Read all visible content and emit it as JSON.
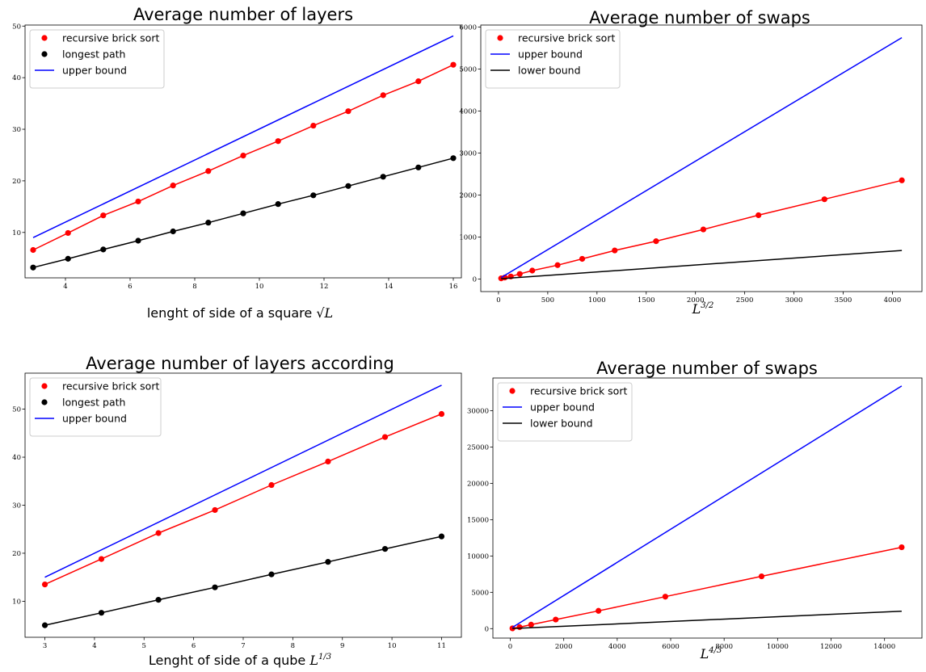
{
  "chart_data": [
    {
      "type": "line",
      "title": "Average number of layers",
      "xlabel": "lenght of side of a square √L",
      "xlim": [
        2.75,
        16.25
      ],
      "ylim": [
        1.2,
        50.2
      ],
      "xticks": [
        4,
        6,
        8,
        10,
        12,
        14,
        16
      ],
      "yticks": [
        10,
        20,
        30,
        40,
        50
      ],
      "legend": "top-left",
      "series": [
        {
          "name": "recursive brick sort",
          "style": "line+markers",
          "color": "#ff0000",
          "x": [
            3,
            4.08,
            5.17,
            6.25,
            7.33,
            8.42,
            9.5,
            10.58,
            11.67,
            12.75,
            13.83,
            14.92,
            16
          ],
          "y": [
            6.6,
            9.9,
            13.3,
            16.0,
            19.1,
            21.9,
            24.9,
            27.7,
            30.7,
            33.5,
            36.6,
            39.3,
            42.5
          ]
        },
        {
          "name": "longest path",
          "style": "line+markers",
          "color": "#000000",
          "x": [
            3,
            4.08,
            5.17,
            6.25,
            7.33,
            8.42,
            9.5,
            10.58,
            11.67,
            12.75,
            13.83,
            14.92,
            16
          ],
          "y": [
            3.2,
            4.9,
            6.7,
            8.4,
            10.2,
            11.9,
            13.7,
            15.5,
            17.2,
            19.0,
            20.8,
            22.6,
            24.4
          ]
        },
        {
          "name": "upper bound",
          "style": "line",
          "color": "#0000ff",
          "x": [
            3,
            16
          ],
          "y": [
            9.0,
            48.1
          ]
        }
      ]
    },
    {
      "type": "line",
      "title": "Average number of swaps",
      "xlabel": "L^{3/2}",
      "xlim": [
        -180,
        4300
      ],
      "ylim": [
        -300,
        6050
      ],
      "xticks": [
        0,
        500,
        1000,
        1500,
        2000,
        2500,
        3000,
        3500,
        4000
      ],
      "yticks": [
        0,
        1000,
        2000,
        3000,
        4000,
        5000,
        6000
      ],
      "legend": "top-left",
      "series": [
        {
          "name": "recursive brick sort",
          "style": "line+markers",
          "color": "#ff0000",
          "x": [
            27,
            64,
            125,
            216,
            343,
            600,
            850,
            1180,
            1600,
            2080,
            2640,
            3310,
            4096
          ],
          "y": [
            15,
            35,
            60,
            120,
            200,
            330,
            480,
            680,
            900,
            1180,
            1520,
            1900,
            2350
          ]
        },
        {
          "name": "upper bound",
          "style": "line",
          "color": "#0000ff",
          "x": [
            27,
            4096
          ],
          "y": [
            35,
            5750
          ]
        },
        {
          "name": "lower bound",
          "style": "line",
          "color": "#000000",
          "x": [
            27,
            4096
          ],
          "y": [
            5,
            680
          ]
        }
      ]
    },
    {
      "type": "line",
      "title": "Average number of layers according",
      "xlabel": "Lenght of side of a qube L^{1/3}",
      "xlim": [
        2.6,
        11.4
      ],
      "ylim": [
        2.5,
        57.5
      ],
      "xticks": [
        3,
        4,
        5,
        6,
        7,
        8,
        9,
        10,
        11
      ],
      "yticks": [
        10,
        20,
        30,
        40,
        50
      ],
      "legend": "top-left",
      "series": [
        {
          "name": "recursive brick sort",
          "style": "line+markers",
          "color": "#ff0000",
          "x": [
            3,
            4.14,
            5.29,
            6.43,
            7.57,
            8.71,
            9.86,
            11
          ],
          "y": [
            13.5,
            18.8,
            24.2,
            29.0,
            34.2,
            39.1,
            44.2,
            49.0
          ]
        },
        {
          "name": "longest path",
          "style": "line+markers",
          "color": "#000000",
          "x": [
            3,
            4.14,
            5.29,
            6.43,
            7.57,
            8.71,
            9.86,
            11
          ],
          "y": [
            5.0,
            7.6,
            10.3,
            12.9,
            15.6,
            18.2,
            20.9,
            23.5
          ]
        },
        {
          "name": "upper bound",
          "style": "line",
          "color": "#0000ff",
          "x": [
            3,
            11
          ],
          "y": [
            15.0,
            55.0
          ]
        }
      ]
    },
    {
      "type": "line",
      "title": "Average number of swaps",
      "xlabel": "L^{4/3}",
      "xlim": [
        -650,
        15400
      ],
      "ylim": [
        -1300,
        34500
      ],
      "xticks": [
        0,
        2000,
        4000,
        6000,
        8000,
        10000,
        12000,
        14000
      ],
      "yticks": [
        0,
        5000,
        10000,
        15000,
        20000,
        25000,
        30000
      ],
      "legend": "top-left",
      "series": [
        {
          "name": "recursive brick sort",
          "style": "line+markers",
          "color": "#ff0000",
          "x": [
            81,
            350,
            780,
            1700,
            3300,
            5800,
            9400,
            14641
          ],
          "y": [
            40,
            200,
            550,
            1250,
            2450,
            4400,
            7200,
            11200
          ]
        },
        {
          "name": "upper bound",
          "style": "line",
          "color": "#0000ff",
          "x": [
            81,
            14641
          ],
          "y": [
            180,
            33400
          ]
        },
        {
          "name": "lower bound",
          "style": "line",
          "color": "#000000",
          "x": [
            81,
            14641
          ],
          "y": [
            15,
            2400
          ]
        }
      ]
    }
  ]
}
